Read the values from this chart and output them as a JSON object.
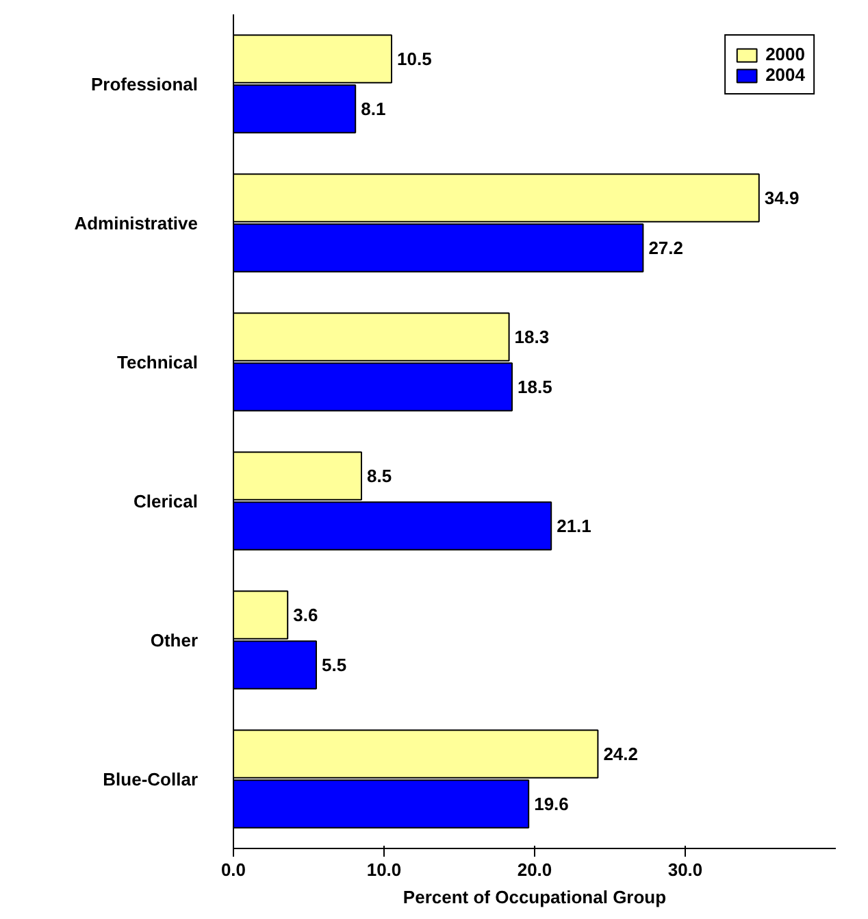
{
  "chart_data": {
    "type": "bar",
    "orientation": "horizontal",
    "xlabel": "Percent of Occupational Group",
    "categories": [
      "Professional",
      "Administrative",
      "Technical",
      "Clerical",
      "Other",
      "Blue-Collar"
    ],
    "series": [
      {
        "name": "2000",
        "color": "#ffff99",
        "values": [
          10.5,
          34.9,
          18.3,
          8.5,
          3.6,
          24.2
        ]
      },
      {
        "name": "2004",
        "color": "#0000ff",
        "values": [
          8.1,
          27.2,
          18.5,
          21.1,
          5.5,
          19.6
        ]
      }
    ],
    "xlim": [
      0,
      40
    ],
    "xticks": [
      {
        "value": 0,
        "label": "0.0"
      },
      {
        "value": 10,
        "label": "10.0"
      },
      {
        "value": 20,
        "label": "20.0"
      },
      {
        "value": 30,
        "label": "30.0"
      }
    ],
    "data_labels": true,
    "grid": false,
    "legend": "top right"
  }
}
